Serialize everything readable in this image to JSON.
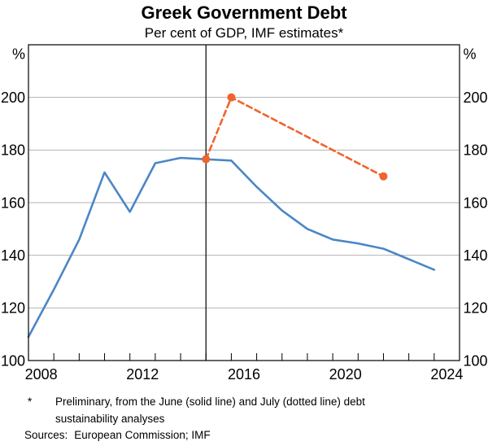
{
  "header": {
    "title": "Greek Government Debt",
    "subtitle": "Per cent of GDP, IMF estimates*"
  },
  "chart_data": {
    "type": "line",
    "title": "Greek Government Debt",
    "subtitle": "Per cent of GDP, IMF estimates*",
    "y_unit": "%",
    "x_range": [
      2008,
      2025
    ],
    "y_range": [
      100,
      220
    ],
    "y_ticks": [
      100,
      120,
      140,
      160,
      180,
      200
    ],
    "y_tick_labels": [
      "100",
      "120",
      "140",
      "160",
      "180",
      "200"
    ],
    "x_minor_ticks": [
      2009,
      2010,
      2011,
      2012,
      2013,
      2014,
      2015,
      2016,
      2017,
      2018,
      2019,
      2020,
      2021,
      2022,
      2023,
      2024
    ],
    "x_labels": [
      {
        "pos": 2008.5,
        "text": "2008"
      },
      {
        "pos": 2012.5,
        "text": "2012"
      },
      {
        "pos": 2016.5,
        "text": "2016"
      },
      {
        "pos": 2020.5,
        "text": "2020"
      },
      {
        "pos": 2024.5,
        "text": "2024"
      }
    ],
    "annotation_line_x": 2015,
    "grid": "horizontal",
    "grid_color": "#B3B3B3",
    "axis_color": "#000000",
    "legend": "none",
    "series": [
      {
        "name": "June debt sustainability analysis (solid line)",
        "style": "solid",
        "color": "#4C86C6",
        "marker": false,
        "x": [
          2008,
          2009,
          2010,
          2011,
          2012,
          2013,
          2014,
          2015,
          2016,
          2017,
          2018,
          2019,
          2020,
          2021,
          2022,
          2023,
          2024
        ],
        "values": [
          109,
          127,
          146,
          171.5,
          156.5,
          175,
          177,
          176.5,
          176,
          166,
          157,
          150,
          146,
          144.5,
          142.5,
          138.5,
          134.5
        ]
      },
      {
        "name": "July debt sustainability analysis (dotted line)",
        "style": "dashed",
        "color": "#EE642D",
        "marker": true,
        "x": [
          2015,
          2016,
          2022
        ],
        "values": [
          176.5,
          200,
          170
        ]
      }
    ]
  },
  "footnote": {
    "marker": "*",
    "text": "Preliminary, from the June (solid line) and July (dotted line) debt sustainability analyses"
  },
  "sources": {
    "label": "Sources:",
    "text": "European Commission; IMF"
  }
}
